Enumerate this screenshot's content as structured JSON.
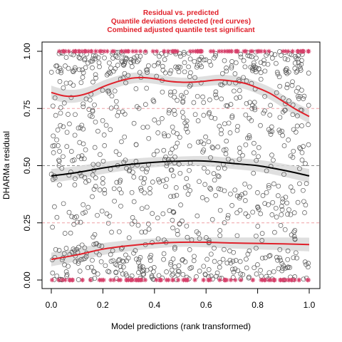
{
  "chart_data": {
    "type": "scatter",
    "title_lines": [
      "Residual vs. predicted",
      "Quantile deviations detected (red curves)",
      "Combined adjusted quantile test significant"
    ],
    "xlabel": "Model predictions (rank transformed)",
    "ylabel": "DHARMa residual",
    "xlim": [
      0,
      1
    ],
    "ylim": [
      0,
      1
    ],
    "x_ticks": [
      "0.0",
      "0.2",
      "0.4",
      "0.6",
      "0.8",
      "1.0"
    ],
    "y_ticks": [
      "0.00",
      "0.25",
      "0.50",
      "0.75",
      "1.00"
    ],
    "reference_lines": [
      0.25,
      0.5,
      0.75
    ],
    "colors": {
      "points": "#555555",
      "outliers": "#d6416b",
      "quantile_curves": "#e0202a",
      "median_curve": "#000000",
      "band": "#d9d9d9",
      "title": "#e0202a"
    },
    "series": [
      {
        "role": "quantile_0.25",
        "x": [
          0.0,
          0.1,
          0.2,
          0.3,
          0.4,
          0.5,
          0.6,
          0.7,
          0.8,
          0.9,
          1.0
        ],
        "y": [
          0.09,
          0.11,
          0.135,
          0.15,
          0.16,
          0.165,
          0.165,
          0.162,
          0.16,
          0.158,
          0.155
        ]
      },
      {
        "role": "median",
        "x": [
          0.0,
          0.1,
          0.2,
          0.3,
          0.4,
          0.5,
          0.6,
          0.7,
          0.8,
          0.9,
          1.0
        ],
        "y": [
          0.455,
          0.47,
          0.49,
          0.505,
          0.515,
          0.52,
          0.52,
          0.51,
          0.5,
          0.48,
          0.455
        ]
      },
      {
        "role": "quantile_0.75",
        "x": [
          0.0,
          0.05,
          0.1,
          0.15,
          0.2,
          0.25,
          0.3,
          0.35,
          0.4,
          0.45,
          0.5,
          0.55,
          0.6,
          0.65,
          0.7,
          0.75,
          0.8,
          0.85,
          0.9,
          0.95,
          1.0
        ],
        "y": [
          0.82,
          0.805,
          0.805,
          0.82,
          0.845,
          0.865,
          0.88,
          0.885,
          0.88,
          0.87,
          0.865,
          0.865,
          0.87,
          0.875,
          0.87,
          0.86,
          0.84,
          0.815,
          0.78,
          0.745,
          0.715
        ]
      }
    ],
    "band_halfwidth": 0.02,
    "scatter": {
      "n_points": 1000,
      "outlier_low_count": 90,
      "outlier_high_count": 95
    }
  }
}
